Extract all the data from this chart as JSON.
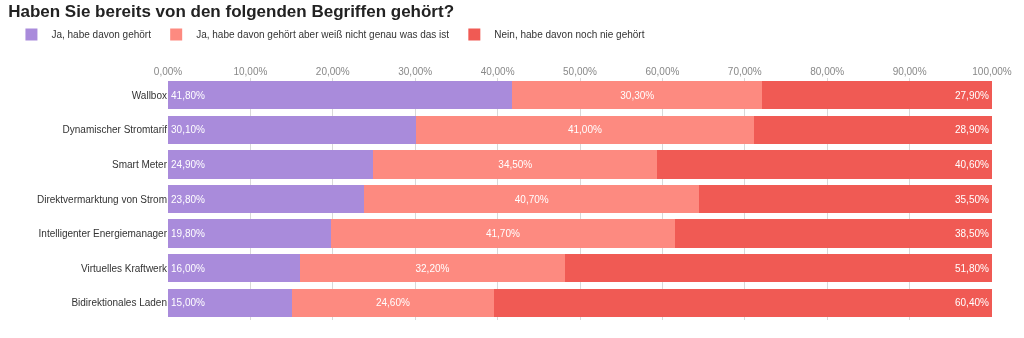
{
  "chart_data": {
    "type": "bar",
    "orientation": "horizontal",
    "stacked": true,
    "title": "Haben Sie bereits von den folgenden Begriffen gehört?",
    "categories": [
      "Wallbox",
      "Dynamischer Stromtarif",
      "Smart Meter",
      "Direktvermarktung von Strom",
      "Intelligenter Energiemanager",
      "Virtuelles Kraftwerk",
      "Bidirektionales Laden"
    ],
    "series": [
      {
        "name": "Ja, habe davon gehört",
        "color": "#a98bdb",
        "values": [
          41.8,
          30.1,
          24.9,
          23.8,
          19.8,
          16.0,
          15.0
        ],
        "value_labels": [
          "41,80%",
          "30,10%",
          "24,90%",
          "23,80%",
          "19,80%",
          "16,00%",
          "15,00%"
        ]
      },
      {
        "name": "Ja, habe davon gehört aber weiß nicht genau was das ist",
        "color": "#fd8a80",
        "values": [
          30.3,
          41.0,
          34.5,
          40.7,
          41.7,
          32.2,
          24.6
        ],
        "value_labels": [
          "30,30%",
          "41,00%",
          "34,50%",
          "40,70%",
          "41,70%",
          "32,20%",
          "24,60%"
        ]
      },
      {
        "name": "Nein, habe davon noch nie gehört",
        "color": "#f05a54",
        "values": [
          27.9,
          28.9,
          40.6,
          35.5,
          38.5,
          51.8,
          60.4
        ],
        "value_labels": [
          "27,90%",
          "28,90%",
          "40,60%",
          "35,50%",
          "38,50%",
          "51,80%",
          "60,40%"
        ]
      }
    ],
    "xlim": [
      0,
      100
    ],
    "xticks": [
      {
        "value": 0,
        "label": "0,00%"
      },
      {
        "value": 10,
        "label": "10,00%"
      },
      {
        "value": 20,
        "label": "20,00%"
      },
      {
        "value": 30,
        "label": "30,00%"
      },
      {
        "value": 40,
        "label": "40,00%"
      },
      {
        "value": 50,
        "label": "50,00%"
      },
      {
        "value": 60,
        "label": "60,00%"
      },
      {
        "value": 70,
        "label": "70,00%"
      },
      {
        "value": 80,
        "label": "80,00%"
      },
      {
        "value": 90,
        "label": "90,00%"
      },
      {
        "value": 100,
        "label": "100,00%"
      }
    ],
    "grid": "x",
    "legend": "top left"
  }
}
